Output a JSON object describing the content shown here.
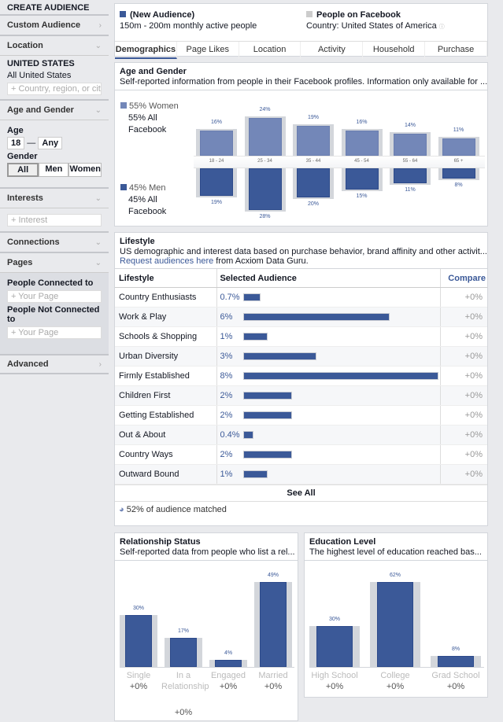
{
  "sidebar": {
    "title": "CREATE AUDIENCE",
    "custom_audience": "Custom Audience",
    "location": "Location",
    "country": "UNITED STATES",
    "country_sub": "All United States",
    "location_placeholder": "+ Country, region, or city",
    "age_gender": "Age and Gender",
    "age_label": "Age",
    "age_min": "18",
    "age_max": "Any",
    "gender_label": "Gender",
    "genders": [
      "All",
      "Men",
      "Women"
    ],
    "gender_selected": "All",
    "interests": "Interests",
    "interest_placeholder": "+ Interest",
    "connections": "Connections",
    "pages": "Pages",
    "connected_label": "People Connected to",
    "connected_placeholder": "+ Your Page",
    "not_connected_label": "People Not Connected to",
    "not_connected_placeholder": "+ Your Page",
    "advanced": "Advanced"
  },
  "header": {
    "audience_name": "(New Audience)",
    "audience_size": "150m - 200m monthly active people",
    "compare_name": "People on Facebook",
    "compare_country": "Country: United States of America",
    "tabs": [
      "Demographics",
      "Page Likes",
      "Location",
      "Activity",
      "Household",
      "Purchase"
    ],
    "active_tab": "Demographics"
  },
  "colors": {
    "women": "#7387b8",
    "men": "#3b5998",
    "baseline": "#d3d6db"
  },
  "age_gender": {
    "title": "Age and Gender",
    "subtitle": "Self-reported information from people in their Facebook profiles. Information only available for ...",
    "women_label": "55% Women",
    "women_all": "55% All Facebook",
    "men_label": "45% Men",
    "men_all": "45% All Facebook"
  },
  "lifestyle": {
    "title": "Lifestyle",
    "subtitle": "US demographic and interest data based on purchase behavior, brand affinity and other activit...",
    "link_prefix": "Request audiences here",
    "link_suffix": " from Acxiom Data Guru.",
    "col_lifestyle": "Lifestyle",
    "col_selected": "Selected Audience",
    "col_compare": "Compare",
    "see_all": "See All",
    "matched": "52% of audience matched",
    "rows": [
      {
        "name": "Country Enthusiasts",
        "pct": "0.7%",
        "compare": "+0%"
      },
      {
        "name": "Work & Play",
        "pct": "6%",
        "compare": "+0%"
      },
      {
        "name": "Schools & Shopping",
        "pct": "1%",
        "compare": "+0%"
      },
      {
        "name": "Urban Diversity",
        "pct": "3%",
        "compare": "+0%"
      },
      {
        "name": "Firmly Established",
        "pct": "8%",
        "compare": "+0%"
      },
      {
        "name": "Children First",
        "pct": "2%",
        "compare": "+0%"
      },
      {
        "name": "Getting Established",
        "pct": "2%",
        "compare": "+0%"
      },
      {
        "name": "Out & About",
        "pct": "0.4%",
        "compare": "+0%"
      },
      {
        "name": "Country Ways",
        "pct": "2%",
        "compare": "+0%"
      },
      {
        "name": "Outward Bound",
        "pct": "1%",
        "compare": "+0%"
      }
    ]
  },
  "relationship": {
    "title": "Relationship Status",
    "subtitle": "Self-reported data from people who list a rel..."
  },
  "education": {
    "title": "Education Level",
    "subtitle": "The highest level of education reached bas..."
  },
  "chart_data": [
    {
      "type": "bar",
      "title": "Age and Gender",
      "categories": [
        "18 - 24",
        "25 - 34",
        "35 - 44",
        "45 - 54",
        "55 - 64",
        "65 +"
      ],
      "series": [
        {
          "name": "55% Women",
          "values": [
            16,
            24,
            19,
            16,
            14,
            11
          ]
        },
        {
          "name": "45% Men",
          "values": [
            19,
            28,
            20,
            15,
            11,
            8
          ]
        }
      ]
    },
    {
      "type": "bar",
      "title": "Relationship Status",
      "categories": [
        "Single",
        "In a Relationship",
        "Engaged",
        "Married"
      ],
      "values": [
        30,
        17,
        4,
        49
      ],
      "compare": [
        "+0%",
        "+0%",
        "+0%",
        "+0%"
      ]
    },
    {
      "type": "bar",
      "title": "Education Level",
      "categories": [
        "High School",
        "College",
        "Grad School"
      ],
      "values": [
        30,
        62,
        8
      ],
      "compare": [
        "+0%",
        "+0%",
        "+0%"
      ]
    }
  ]
}
